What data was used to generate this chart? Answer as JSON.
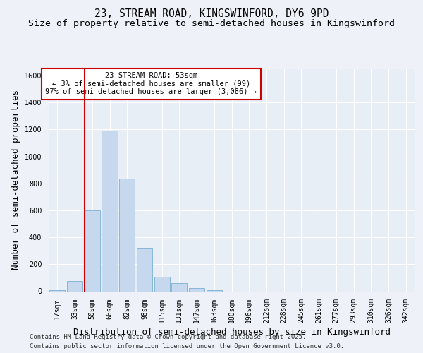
{
  "title_line1": "23, STREAM ROAD, KINGSWINFORD, DY6 9PD",
  "title_line2": "Size of property relative to semi-detached houses in Kingswinford",
  "xlabel": "Distribution of semi-detached houses by size in Kingswinford",
  "ylabel": "Number of semi-detached properties",
  "categories": [
    "17sqm",
    "33sqm",
    "50sqm",
    "66sqm",
    "82sqm",
    "98sqm",
    "115sqm",
    "131sqm",
    "147sqm",
    "163sqm",
    "180sqm",
    "196sqm",
    "212sqm",
    "228sqm",
    "245sqm",
    "261sqm",
    "277sqm",
    "293sqm",
    "310sqm",
    "326sqm",
    "342sqm"
  ],
  "bar_values": [
    10,
    75,
    600,
    1190,
    835,
    320,
    110,
    60,
    25,
    10,
    0,
    0,
    0,
    0,
    0,
    0,
    0,
    0,
    0,
    0,
    0
  ],
  "bar_color": "#c5d8ed",
  "bar_edgecolor": "#7bafd4",
  "vline_color": "#cc0000",
  "ylim": [
    0,
    1650
  ],
  "yticks": [
    0,
    200,
    400,
    600,
    800,
    1000,
    1200,
    1400,
    1600
  ],
  "annotation_text": "23 STREAM ROAD: 53sqm\n← 3% of semi-detached houses are smaller (99)\n97% of semi-detached houses are larger (3,086) →",
  "footer_line1": "Contains HM Land Registry data © Crown copyright and database right 2025.",
  "footer_line2": "Contains public sector information licensed under the Open Government Licence v3.0.",
  "background_color": "#eef2f8",
  "plot_background": "#e8eef6",
  "grid_color": "#ffffff",
  "title_fontsize": 10.5,
  "subtitle_fontsize": 9.5,
  "tick_fontsize": 7,
  "label_fontsize": 9,
  "footer_fontsize": 6.5
}
